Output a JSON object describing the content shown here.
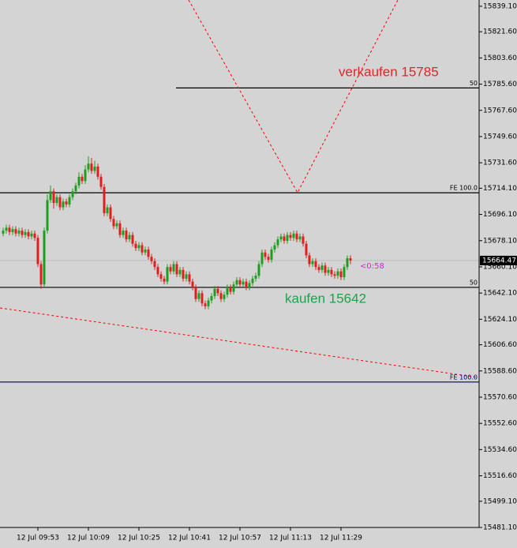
{
  "chart_data": {
    "type": "candlestick",
    "symbol_note": null,
    "categories": [
      null,
      null,
      null,
      null,
      null,
      null,
      null,
      null,
      null,
      null,
      null,
      "12 Jul 09:53",
      null,
      null,
      null,
      null,
      null,
      null,
      null,
      null,
      null,
      null,
      null,
      null,
      null,
      null,
      null,
      "12 Jul 10:09",
      null,
      null,
      null,
      null,
      null,
      null,
      null,
      null,
      null,
      null,
      null,
      null,
      null,
      null,
      null,
      "12 Jul 10:25",
      null,
      null,
      null,
      null,
      null,
      null,
      null,
      null,
      null,
      null,
      null,
      null,
      null,
      null,
      null,
      "12 Jul 10:41",
      null,
      null,
      null,
      null,
      null,
      null,
      null,
      null,
      null,
      null,
      null,
      null,
      null,
      null,
      null,
      "12 Jul 10:57",
      null,
      null,
      null,
      null,
      null,
      null,
      null,
      null,
      null,
      null,
      null,
      null,
      null,
      null,
      null,
      "12 Jul 11:13",
      null,
      null,
      null,
      null,
      null,
      null,
      null,
      null,
      null,
      null,
      null,
      null,
      null,
      null,
      null,
      "12 Jul 11:29",
      null,
      null,
      null
    ],
    "ohlc": [
      [
        15683,
        15687,
        15681,
        15685
      ],
      [
        15685,
        15689,
        15683,
        15687
      ],
      [
        15687,
        15689,
        15682,
        15684
      ],
      [
        15684,
        15688,
        15682,
        15686
      ],
      [
        15686,
        15688,
        15681,
        15683
      ],
      [
        15683,
        15687,
        15681,
        15685
      ],
      [
        15685,
        15687,
        15680,
        15682
      ],
      [
        15682,
        15686,
        15680,
        15684
      ],
      [
        15684,
        15686,
        15679,
        15681
      ],
      [
        15681,
        15685,
        15679,
        15683
      ],
      [
        15683,
        15685,
        15678,
        15680
      ],
      [
        15680,
        15682,
        15660,
        15662
      ],
      [
        15662,
        15664,
        15645,
        15648
      ],
      [
        15648,
        15687,
        15646,
        15685
      ],
      [
        15685,
        15710,
        15683,
        15706
      ],
      [
        15706,
        15716,
        15704,
        15712
      ],
      [
        15712,
        15714,
        15700,
        15704
      ],
      [
        15704,
        15710,
        15702,
        15708
      ],
      [
        15708,
        15710,
        15699,
        15701
      ],
      [
        15701,
        15707,
        15699,
        15705
      ],
      [
        15705,
        15707,
        15701,
        15703
      ],
      [
        15703,
        15710,
        15701,
        15708
      ],
      [
        15708,
        15714,
        15706,
        15712
      ],
      [
        15712,
        15718,
        15710,
        15716
      ],
      [
        15716,
        15725,
        15714,
        15722
      ],
      [
        15722,
        15724,
        15717,
        15719
      ],
      [
        15719,
        15730,
        15717,
        15727
      ],
      [
        15727,
        15736,
        15725,
        15731
      ],
      [
        15731,
        15735,
        15724,
        15726
      ],
      [
        15726,
        15733,
        15724,
        15729
      ],
      [
        15729,
        15731,
        15720,
        15722
      ],
      [
        15722,
        15724,
        15713,
        15715
      ],
      [
        15715,
        15717,
        15695,
        15697
      ],
      [
        15697,
        15703,
        15695,
        15701
      ],
      [
        15701,
        15703,
        15691,
        15693
      ],
      [
        15693,
        15695,
        15686,
        15688
      ],
      [
        15688,
        15692,
        15686,
        15690
      ],
      [
        15690,
        15692,
        15680,
        15682
      ],
      [
        15682,
        15687,
        15680,
        15685
      ],
      [
        15685,
        15687,
        15677,
        15679
      ],
      [
        15679,
        15684,
        15677,
        15682
      ],
      [
        15682,
        15684,
        15674,
        15676
      ],
      [
        15676,
        15678,
        15671,
        15673
      ],
      [
        15673,
        15677,
        15671,
        15675
      ],
      [
        15675,
        15677,
        15668,
        15670
      ],
      [
        15670,
        15674,
        15668,
        15672
      ],
      [
        15672,
        15674,
        15665,
        15667
      ],
      [
        15667,
        15669,
        15662,
        15664
      ],
      [
        15664,
        15666,
        15658,
        15660
      ],
      [
        15660,
        15662,
        15653,
        15655
      ],
      [
        15655,
        15657,
        15650,
        15652
      ],
      [
        15652,
        15654,
        15648,
        15650
      ],
      [
        15650,
        15662,
        15648,
        15660
      ],
      [
        15660,
        15662,
        15655,
        15657
      ],
      [
        15657,
        15664,
        15655,
        15662
      ],
      [
        15662,
        15664,
        15653,
        15655
      ],
      [
        15655,
        15660,
        15653,
        15658
      ],
      [
        15658,
        15660,
        15650,
        15652
      ],
      [
        15652,
        15657,
        15650,
        15655
      ],
      [
        15655,
        15657,
        15648,
        15650
      ],
      [
        15650,
        15652,
        15644,
        15646
      ],
      [
        15646,
        15648,
        15636,
        15638
      ],
      [
        15638,
        15644,
        15636,
        15642
      ],
      [
        15642,
        15644,
        15633,
        15635
      ],
      [
        15635,
        15637,
        15631,
        15633
      ],
      [
        15633,
        15639,
        15631,
        15637
      ],
      [
        15637,
        15642,
        15635,
        15640
      ],
      [
        15640,
        15647,
        15638,
        15645
      ],
      [
        15645,
        15647,
        15640,
        15642
      ],
      [
        15642,
        15644,
        15636,
        15638
      ],
      [
        15638,
        15643,
        15636,
        15641
      ],
      [
        15641,
        15648,
        15639,
        15646
      ],
      [
        15646,
        15648,
        15641,
        15643
      ],
      [
        15643,
        15650,
        15641,
        15648
      ],
      [
        15648,
        15653,
        15646,
        15651
      ],
      [
        15651,
        15653,
        15646,
        15648
      ],
      [
        15648,
        15652,
        15646,
        15650
      ],
      [
        15650,
        15652,
        15644,
        15646
      ],
      [
        15646,
        15651,
        15644,
        15649
      ],
      [
        15649,
        15654,
        15647,
        15652
      ],
      [
        15652,
        15656,
        15650,
        15654
      ],
      [
        15654,
        15664,
        15652,
        15662
      ],
      [
        15662,
        15672,
        15660,
        15670
      ],
      [
        15670,
        15672,
        15665,
        15667
      ],
      [
        15667,
        15669,
        15663,
        15665
      ],
      [
        15665,
        15674,
        15663,
        15672
      ],
      [
        15672,
        15677,
        15670,
        15675
      ],
      [
        15675,
        15681,
        15673,
        15679
      ],
      [
        15679,
        15683,
        15677,
        15681
      ],
      [
        15681,
        15683,
        15676,
        15678
      ],
      [
        15678,
        15684,
        15676,
        15682
      ],
      [
        15682,
        15684,
        15678,
        15680
      ],
      [
        15680,
        15685,
        15678,
        15683
      ],
      [
        15683,
        15685,
        15677,
        15679
      ],
      [
        15679,
        15683,
        15677,
        15681
      ],
      [
        15681,
        15683,
        15674,
        15676
      ],
      [
        15676,
        15678,
        15666,
        15668
      ],
      [
        15668,
        15670,
        15660,
        15662
      ],
      [
        15662,
        15666,
        15660,
        15664
      ],
      [
        15664,
        15666,
        15658,
        15660
      ],
      [
        15660,
        15662,
        15656,
        15658
      ],
      [
        15658,
        15663,
        15656,
        15661
      ],
      [
        15661,
        15663,
        15654,
        15656
      ],
      [
        15656,
        15660,
        15654,
        15658
      ],
      [
        15658,
        15660,
        15653,
        15655
      ],
      [
        15655,
        15657,
        15652,
        15654
      ],
      [
        15654,
        15659,
        15652,
        15657
      ],
      [
        15657,
        15659,
        15651,
        15653
      ],
      [
        15653,
        15662,
        15651,
        15660
      ],
      [
        15660,
        15668,
        15658,
        15666
      ],
      [
        15666,
        15668,
        15662,
        15664.47
      ]
    ],
    "up_color": "#1e9e1e",
    "down_color": "#e01e1e",
    "xlim": [
      -1,
      150.25
    ],
    "ylim": [
      15481.1,
      15843.4
    ],
    "yticks": [
      {
        "value": 15839.1,
        "label": "15839.10"
      },
      {
        "value": 15821.6,
        "label": "15821.60"
      },
      {
        "value": 15803.6,
        "label": "15803.60"
      },
      {
        "value": 15785.6,
        "label": "15785.60"
      },
      {
        "value": 15767.6,
        "label": "15767.60"
      },
      {
        "value": 15749.6,
        "label": "15749.60"
      },
      {
        "value": 15731.6,
        "label": "15731.60"
      },
      {
        "value": 15714.1,
        "label": "15714.10"
      },
      {
        "value": 15696.1,
        "label": "15696.10"
      },
      {
        "value": 15678.1,
        "label": "15678.10"
      },
      {
        "value": 15660.1,
        "label": "15660.10"
      },
      {
        "value": 15642.1,
        "label": "15642.10"
      },
      {
        "value": 15624.1,
        "label": "15624.10"
      },
      {
        "value": 15606.6,
        "label": "15606.60"
      },
      {
        "value": 15588.6,
        "label": "15588.60"
      },
      {
        "value": 15570.6,
        "label": "15570.60"
      },
      {
        "value": 15552.6,
        "label": "15552.60"
      },
      {
        "value": 15534.6,
        "label": "15534.60"
      },
      {
        "value": 15516.6,
        "label": "15516.60"
      },
      {
        "value": 15499.1,
        "label": "15499.10"
      },
      {
        "value": 15481.1,
        "label": "15481.10"
      }
    ],
    "last_price": 15664.47,
    "levels": [
      {
        "value": 15783,
        "color": "#000000",
        "label": "50",
        "from": 54.75
      },
      {
        "value": 15711,
        "color": "#000000",
        "label": "FE 100.0"
      },
      {
        "value": 15646,
        "color": "#000000",
        "label": "50"
      },
      {
        "value": 15581,
        "color": "#000080",
        "label": "FE 100.0"
      }
    ],
    "trendlines": [
      {
        "color": "#ff0000",
        "points": [
          [
            58.75,
            15843.4
          ],
          [
            93.25,
            15711.1
          ],
          [
            125,
            15843.4
          ]
        ]
      },
      {
        "color": "#ff0000",
        "points": [
          [
            -1,
            15631.9
          ],
          [
            150.25,
            15584.2
          ]
        ]
      }
    ],
    "annotations": [
      "verkaufen 15785",
      "kaufen 15642"
    ],
    "timer": "<0:58"
  }
}
